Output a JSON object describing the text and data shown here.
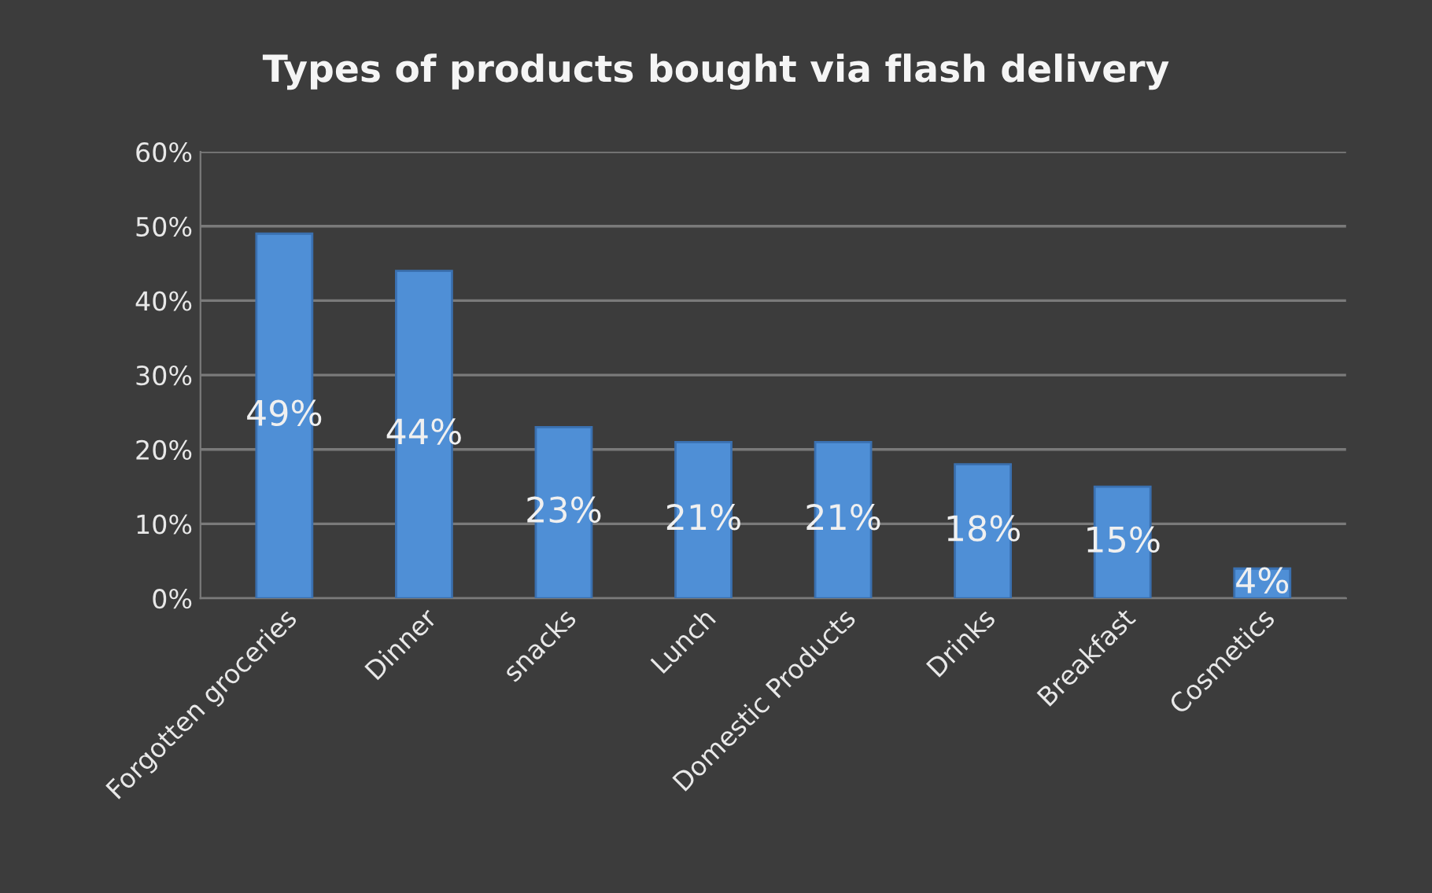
{
  "chart_data": {
    "type": "bar",
    "title": "Types of products bought via flash delivery",
    "categories": [
      "Forgotten groceries",
      "Dinner",
      "snacks",
      "Lunch",
      "Domestic Products",
      "Drinks",
      "Breakfast",
      "Cosmetics"
    ],
    "values": [
      49,
      44,
      23,
      21,
      21,
      18,
      15,
      4
    ],
    "value_labels": [
      "49%",
      "44%",
      "23%",
      "21%",
      "21%",
      "18%",
      "15%",
      "4%"
    ],
    "color": "#4f8fd6",
    "ylim": [
      0,
      60
    ],
    "yticks": [
      {
        "value": 0,
        "label": "0%"
      },
      {
        "value": 10,
        "label": "10%"
      },
      {
        "value": 20,
        "label": "20%"
      },
      {
        "value": 30,
        "label": "30%"
      },
      {
        "value": 40,
        "label": "40%"
      },
      {
        "value": 50,
        "label": "50%"
      },
      {
        "value": 60,
        "label": "60%"
      }
    ],
    "grid": "y"
  }
}
